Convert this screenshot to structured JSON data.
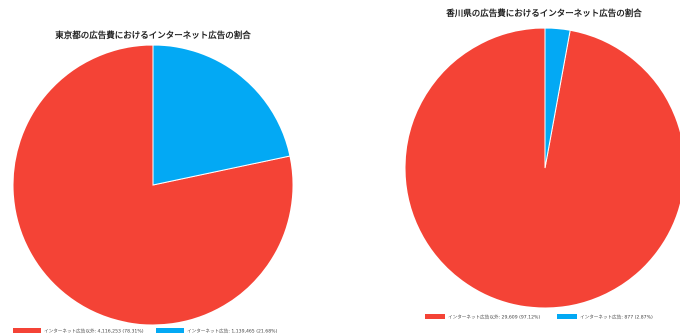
{
  "chart_data": [
    {
      "type": "pie",
      "title": "東京都の広告費におけるインターネット広告の割合",
      "slices": [
        {
          "label": "インターネット広告以外: 4,116,253 (78.31%)",
          "value": 4116253,
          "percent": 78.31,
          "color": "#f44336"
        },
        {
          "label": "インターネット広告: 1,139,465 (21.68%)",
          "value": 1139465,
          "percent": 21.68,
          "color": "#03a9f4"
        }
      ],
      "start_angle_deg": 0,
      "direction": "counterclockwise",
      "legend": "bottom-left"
    },
    {
      "type": "pie",
      "title": "香川県の広告費におけるインターネット広告の割合",
      "slices": [
        {
          "label": "インターネット広告以外: 29,609 (97.12%)",
          "value": 29609,
          "percent": 97.12,
          "color": "#f44336"
        },
        {
          "label": "インターネット広告: 877 (2.87%)",
          "value": 877,
          "percent": 2.87,
          "color": "#03a9f4"
        }
      ],
      "start_angle_deg": 0,
      "direction": "counterclockwise",
      "legend": "bottom-center"
    }
  ]
}
